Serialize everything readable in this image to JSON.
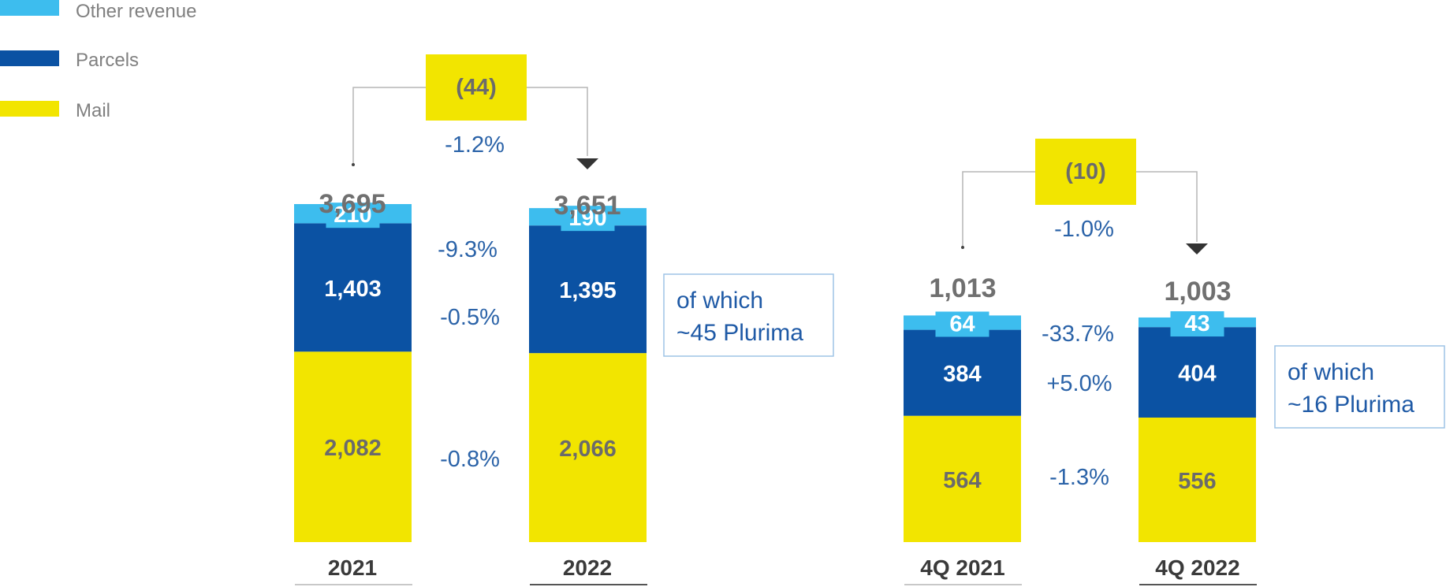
{
  "chart_data": {
    "type": "bar",
    "stacked": true,
    "legend": [
      {
        "name": "Other revenue",
        "color": "#3dbdee"
      },
      {
        "name": "Parcels",
        "color": "#0b52a3"
      },
      {
        "name": "Mail",
        "color": "#f2e500"
      }
    ],
    "series": [
      {
        "name": "Mail",
        "color": "#f2e500",
        "values": [
          2082,
          2066,
          564,
          556
        ],
        "labels": [
          "2,082",
          "2,066",
          "564",
          "556"
        ]
      },
      {
        "name": "Parcels",
        "color": "#0b52a3",
        "values": [
          1403,
          1395,
          384,
          404
        ],
        "labels": [
          "1,403",
          "1,395",
          "384",
          "404"
        ]
      },
      {
        "name": "Other revenue",
        "color": "#3dbdee",
        "values": [
          210,
          190,
          64,
          43
        ],
        "labels": [
          "210",
          "190",
          "64",
          "43"
        ]
      }
    ],
    "groups": [
      {
        "categories": [
          "2021",
          "2022"
        ],
        "totals": [
          "3,695",
          "3,651"
        ],
        "difference": "(44)",
        "difference_pct": "-1.2%",
        "segment_changes": {
          "other": "-9.3%",
          "parcels": "-0.5%",
          "mail": "-0.8%"
        },
        "note_line1": "of which",
        "note_line2": "~45 Plurima"
      },
      {
        "categories": [
          "4Q 2021",
          "4Q 2022"
        ],
        "totals": [
          "1,013",
          "1,003"
        ],
        "difference": "(10)",
        "difference_pct": "-1.0%",
        "segment_changes": {
          "other": "-33.7%",
          "parcels": "+5.0%",
          "mail": "-1.3%"
        },
        "note_line1": "of which",
        "note_line2": "~16 Plurima"
      }
    ]
  }
}
